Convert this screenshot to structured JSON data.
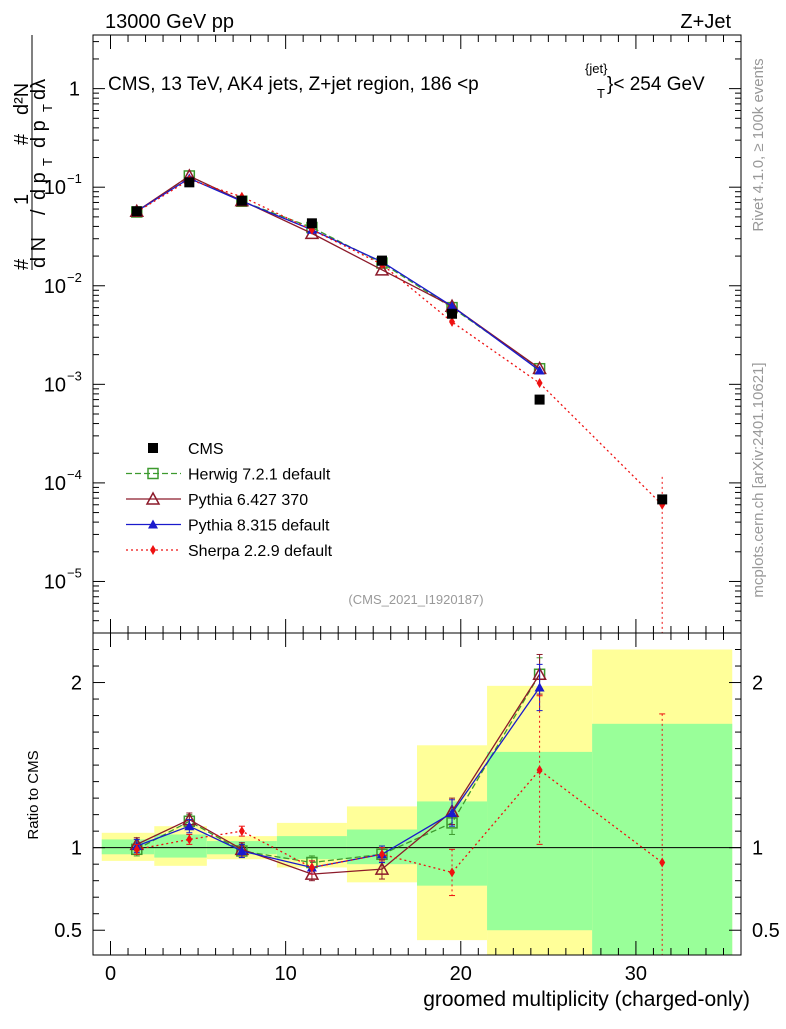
{
  "header": {
    "left": "13000 GeV pp",
    "right": "Z+Jet"
  },
  "side": {
    "rivet": "Rivet 4.1.0, ≥ 100k events",
    "mcplots": "mcplots.cern.ch [arXiv:2401.10621]"
  },
  "chart_data": {
    "type": "line",
    "title": "CMS, 13 TeV, AK4 jets, Z+jet region, 186 <p_T^{jet}> < 254 GeV",
    "title_main": "CMS, 13 TeV, AK4 jets, Z+jet region, 186 <p",
    "title_sup": "{jet}",
    "title_sub": "T",
    "title_tail": "}< 254 GeV",
    "ylabel": "1/N dN/dp_T d²N/dp_T dλ",
    "ylabel_parts": [
      "1",
      "#",
      "d N",
      "/",
      "d p",
      "T",
      "#",
      "d²N",
      "d p",
      "T",
      "dλ"
    ],
    "xlabel": "groomed multiplicity (charged-only)",
    "ratio_ylabel": "Ratio to CMS",
    "watermark": "(CMS_2021_I1920187)",
    "xlim": [
      -1,
      36
    ],
    "ylim_main": [
      3e-06,
      3.5
    ],
    "yscale_main": "log",
    "ylim_ratio": [
      0.35,
      2.3
    ],
    "main_yticks": [
      {
        "value": 1,
        "label": "1"
      },
      {
        "value": 0.1,
        "label": "10",
        "exp": "−1"
      },
      {
        "value": 0.01,
        "label": "10",
        "exp": "−2"
      },
      {
        "value": 0.001,
        "label": "10",
        "exp": "−3"
      },
      {
        "value": 0.0001,
        "label": "10",
        "exp": "−4"
      },
      {
        "value": 1e-05,
        "label": "10",
        "exp": "−5"
      }
    ],
    "xticks": [
      {
        "value": 0,
        "label": "0"
      },
      {
        "value": 10,
        "label": "10"
      },
      {
        "value": 20,
        "label": "20"
      },
      {
        "value": 30,
        "label": "30"
      }
    ],
    "ratio_yticks": [
      {
        "value": 0.5,
        "label": "0.5"
      },
      {
        "value": 1,
        "label": "1"
      },
      {
        "value": 2,
        "label": "2"
      }
    ],
    "bins": [
      {
        "lo": -0.5,
        "hi": 2.5
      },
      {
        "lo": 2.5,
        "hi": 5.5
      },
      {
        "lo": 5.5,
        "hi": 9.5
      },
      {
        "lo": 9.5,
        "hi": 13.5
      },
      {
        "lo": 13.5,
        "hi": 17.5
      },
      {
        "lo": 17.5,
        "hi": 21.5
      },
      {
        "lo": 21.5,
        "hi": 27.5
      },
      {
        "lo": 27.5,
        "hi": 35.5
      }
    ],
    "bands": {
      "green": [
        [
          0.96,
          1.05
        ],
        [
          0.94,
          1.08
        ],
        [
          0.96,
          1.04
        ],
        [
          0.93,
          1.07
        ],
        [
          0.9,
          1.11
        ],
        [
          0.77,
          1.28
        ],
        [
          0.5,
          1.58
        ],
        [
          0.35,
          1.75
        ]
      ],
      "yellow": [
        [
          0.92,
          1.09
        ],
        [
          0.89,
          1.13
        ],
        [
          0.93,
          1.07
        ],
        [
          0.88,
          1.15
        ],
        [
          0.79,
          1.25
        ],
        [
          0.44,
          1.62
        ],
        [
          0.35,
          1.98
        ],
        [
          0.35,
          2.2
        ]
      ]
    },
    "series": [
      {
        "name": "CMS",
        "color": "#000000",
        "style": "data",
        "marker": "square",
        "x": [
          1.5,
          4.5,
          7.5,
          11.5,
          15.5,
          19.5,
          24.5,
          31.5
        ],
        "y": [
          0.057,
          0.112,
          0.073,
          0.043,
          0.018,
          0.0052,
          0.0007,
          6.8e-05
        ],
        "ratio": [
          1,
          1,
          1,
          1,
          1,
          1,
          1,
          1
        ]
      },
      {
        "name": "Herwig 7.2.1 default",
        "color": "#3d9a2e",
        "style": "dashed",
        "marker": "open-square",
        "x": [
          1.5,
          4.5,
          7.5,
          11.5,
          15.5,
          19.5,
          24.5
        ],
        "y": [
          0.056,
          0.13,
          0.072,
          0.039,
          0.017,
          0.006,
          0.00144
        ],
        "ratio": [
          0.99,
          1.16,
          0.98,
          0.91,
          0.96,
          1.15,
          2.05
        ],
        "err": [
          0.04,
          0.04,
          0.04,
          0.04,
          0.05,
          0.07,
          0.1
        ]
      },
      {
        "name": "Pythia 6.427 370",
        "color": "#8c1a2a",
        "style": "solid",
        "marker": "open-triangle",
        "x": [
          1.5,
          4.5,
          7.5,
          11.5,
          15.5,
          19.5,
          24.5
        ],
        "y": [
          0.057,
          0.13,
          0.073,
          0.034,
          0.0145,
          0.0062,
          0.00145
        ],
        "ratio": [
          1.02,
          1.17,
          0.99,
          0.84,
          0.87,
          1.22,
          2.05
        ],
        "err": [
          0.04,
          0.04,
          0.04,
          0.04,
          0.06,
          0.08,
          0.12
        ]
      },
      {
        "name": "Pythia 8.315 default",
        "color": "#1a1acc",
        "style": "solid",
        "marker": "triangle",
        "x": [
          1.5,
          4.5,
          7.5,
          11.5,
          15.5,
          19.5,
          24.5
        ],
        "y": [
          0.057,
          0.123,
          0.072,
          0.037,
          0.0175,
          0.0062,
          0.00138
        ],
        "ratio": [
          1.01,
          1.13,
          0.98,
          0.88,
          0.96,
          1.21,
          1.97
        ],
        "err": [
          0.04,
          0.04,
          0.04,
          0.04,
          0.05,
          0.08,
          0.14
        ]
      },
      {
        "name": "Sherpa 2.2.9 default",
        "color": "#ee1111",
        "style": "dotted",
        "marker": "diamond",
        "x": [
          1.5,
          4.5,
          7.5,
          11.5,
          15.5,
          19.5,
          24.5,
          31.5
        ],
        "y": [
          0.056,
          0.119,
          0.08,
          0.037,
          0.0165,
          0.0043,
          0.00103,
          6e-05
        ],
        "ratio": [
          0.99,
          1.05,
          1.1,
          0.88,
          0.96,
          0.85,
          1.47,
          0.91
        ],
        "err": [
          0.03,
          0.03,
          0.03,
          0.04,
          0.04,
          0.14,
          0.45,
          0.9
        ],
        "ymain_err_last": [
          2e-06,
          0.000115
        ]
      }
    ]
  }
}
